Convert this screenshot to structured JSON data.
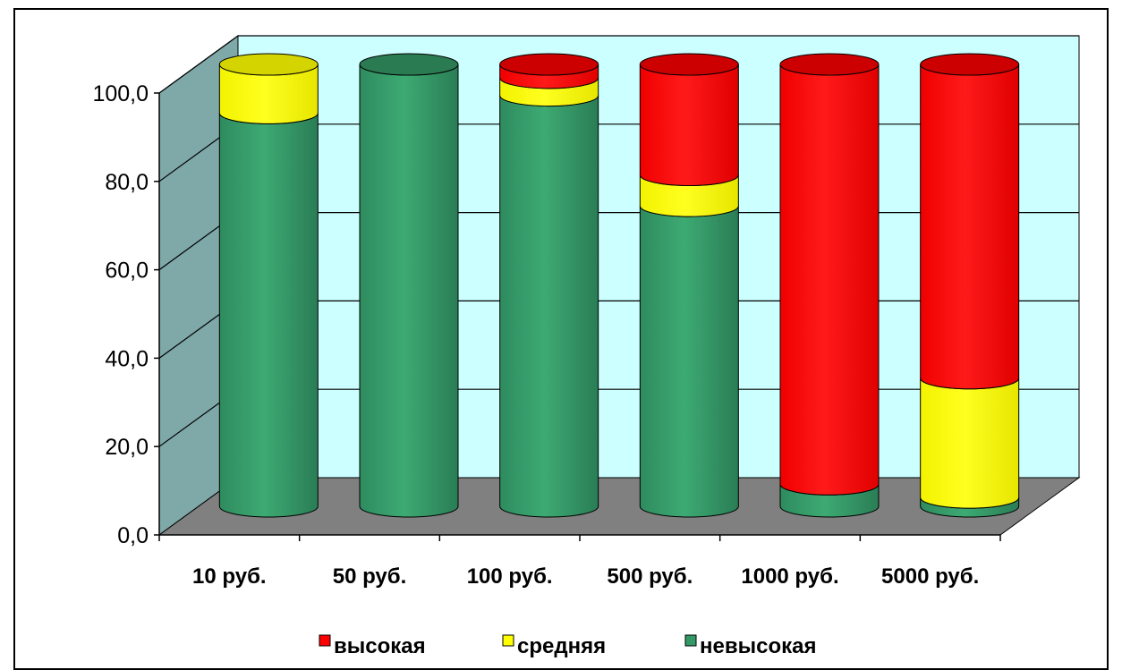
{
  "chart_data": {
    "type": "bar",
    "stacked": true,
    "style": "3d-cylinder",
    "categories": [
      "10 руб.",
      "50 руб.",
      "100 руб.",
      "500 руб.",
      "1000 руб.",
      "5000 руб."
    ],
    "series": [
      {
        "name": "невысокая",
        "color": "#339966",
        "values": [
          89,
          100,
          93,
          68,
          5,
          2
        ]
      },
      {
        "name": "средняя",
        "color": "#FFFF00",
        "values": [
          11,
          0,
          4,
          7,
          0,
          27
        ]
      },
      {
        "name": "высокая",
        "color": "#FF0000",
        "values": [
          0,
          0,
          3,
          25,
          95,
          71
        ]
      }
    ],
    "ylim": [
      0,
      100
    ],
    "yticks": [
      "0,0",
      "20,0",
      "40,0",
      "60,0",
      "80,0",
      "100,0"
    ],
    "grid": true,
    "legend_position": "bottom",
    "legend_order": [
      "высокая",
      "средняя",
      "невысокая"
    ],
    "colors": {
      "back_wall": "#CCFFFF",
      "side_wall": "#7FA8A8",
      "floor": "#808080",
      "gridline": "#000000"
    }
  }
}
